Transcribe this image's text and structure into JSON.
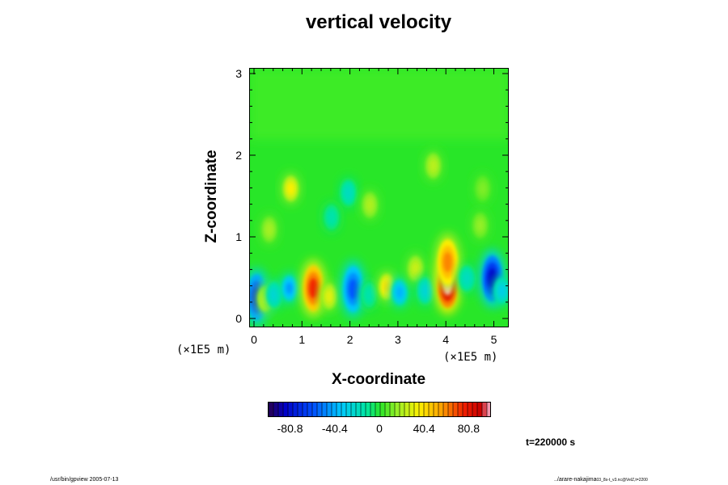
{
  "chart_data": {
    "type": "heatmap",
    "title": "vertical velocity",
    "xlabel": "X-coordinate",
    "ylabel": "Z-coordinate",
    "x_unit": "(×1E5 m)",
    "y_unit": "(×1E5 m)",
    "xlim": [
      0,
      5.2
    ],
    "ylim": [
      0,
      3.1
    ],
    "x_ticks": [
      "0",
      "1",
      "2",
      "3",
      "4",
      "5"
    ],
    "y_ticks": [
      "0",
      "1",
      "2",
      "3"
    ],
    "colorbar": {
      "ticks": [
        "-80.8",
        "-40.4",
        "0",
        "40.4",
        "80.8"
      ],
      "range": [
        -101,
        101
      ]
    },
    "features": [
      {
        "x": 0.04,
        "z": 0.27,
        "value": -70
      },
      {
        "x": 0.22,
        "z": 0.25,
        "value": 30
      },
      {
        "x": 0.4,
        "z": 0.3,
        "value": -25
      },
      {
        "x": 0.72,
        "z": 0.38,
        "value": -45
      },
      {
        "x": 1.22,
        "z": 0.38,
        "value": 75
      },
      {
        "x": 1.55,
        "z": 0.28,
        "value": 30
      },
      {
        "x": 2.05,
        "z": 0.37,
        "value": -60
      },
      {
        "x": 2.38,
        "z": 0.3,
        "value": -15
      },
      {
        "x": 2.75,
        "z": 0.4,
        "value": 40
      },
      {
        "x": 3.02,
        "z": 0.33,
        "value": -40
      },
      {
        "x": 3.35,
        "z": 0.62,
        "value": 25
      },
      {
        "x": 3.55,
        "z": 0.35,
        "value": -25
      },
      {
        "x": 4.02,
        "z": 0.42,
        "value": 101
      },
      {
        "x": 4.02,
        "z": 0.7,
        "value": 60
      },
      {
        "x": 4.42,
        "z": 0.5,
        "value": -20
      },
      {
        "x": 4.95,
        "z": 0.5,
        "value": -85
      },
      {
        "x": 5.15,
        "z": 0.35,
        "value": -30
      },
      {
        "x": 0.75,
        "z": 1.6,
        "value": 35
      },
      {
        "x": 1.95,
        "z": 1.55,
        "value": -20
      },
      {
        "x": 2.4,
        "z": 1.4,
        "value": 20
      },
      {
        "x": 3.72,
        "z": 1.88,
        "value": 22
      },
      {
        "x": 4.75,
        "z": 1.6,
        "value": 12
      },
      {
        "x": 0.3,
        "z": 1.1,
        "value": 18
      },
      {
        "x": 1.6,
        "z": 1.25,
        "value": -15
      },
      {
        "x": 4.7,
        "z": 1.15,
        "value": 15
      }
    ]
  },
  "timestamp": "t=220000 s",
  "footer_left": "/usr/bin/gpview 2005-07-13",
  "footer_right": "../arare-nakajima",
  "footer_right_sub": "03_8s-t_v3.nc@VelZ,t=2200"
}
